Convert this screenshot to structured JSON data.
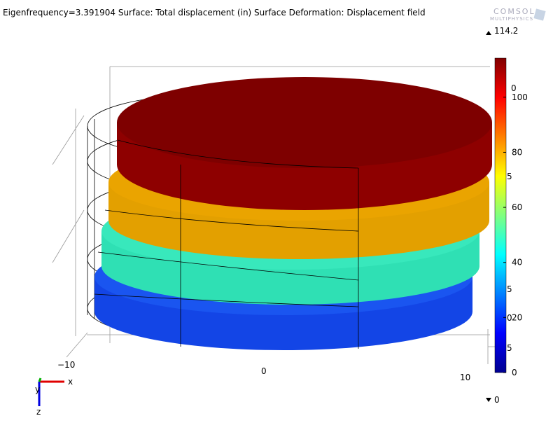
{
  "title": "Eigenfrequency=3.391904  Surface: Total displacement (in)   Surface Deformation: Displacement field",
  "logo": {
    "line1": "COMSOL",
    "line2": "MULTIPHYSICS"
  },
  "colorbar": {
    "max": 114.2,
    "min": 0,
    "ticks": [
      0,
      20,
      40,
      60,
      80,
      100
    ],
    "ghost_labels": [
      "0",
      "5",
      "5",
      "0",
      "5"
    ]
  },
  "axes": {
    "x_ticks": [
      "−10",
      "0",
      "10"
    ],
    "triad": [
      "x",
      "y",
      "z"
    ]
  }
}
